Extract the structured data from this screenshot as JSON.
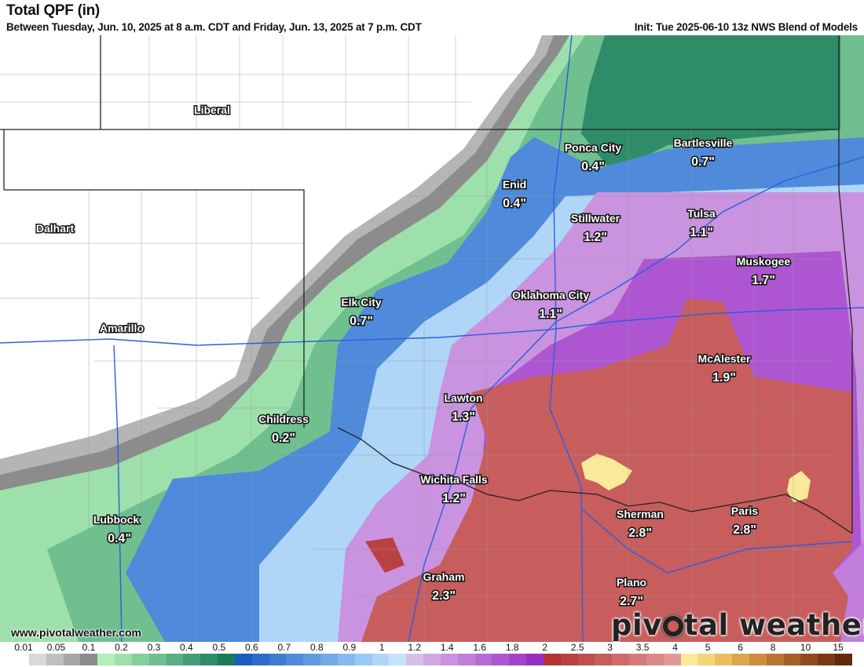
{
  "header": {
    "title": "Total QPF (in)",
    "subtitle": "Between Tuesday, Jun. 10, 2025 at 8 a.m. CDT and Friday, Jun. 13, 2025 at 7 p.m. CDT",
    "init": "Init: Tue 2025-06-10 13z NWS Blend of Models"
  },
  "cities": [
    {
      "name": "Liberal",
      "value": ""
    },
    {
      "name": "Dalhart",
      "value": ""
    },
    {
      "name": "Amarillo",
      "value": ""
    },
    {
      "name": "Ponca City",
      "value": "0.4\""
    },
    {
      "name": "Bartlesville",
      "value": "0.7\""
    },
    {
      "name": "Enid",
      "value": "0.4\""
    },
    {
      "name": "Stillwater",
      "value": "1.2\""
    },
    {
      "name": "Tulsa",
      "value": "1.1\""
    },
    {
      "name": "Muskogee",
      "value": "1.7\""
    },
    {
      "name": "Oklahoma City",
      "value": "1.1\""
    },
    {
      "name": "Elk City",
      "value": "0.7\""
    },
    {
      "name": "McAlester",
      "value": "1.9\""
    },
    {
      "name": "Lawton",
      "value": "1.3\""
    },
    {
      "name": "Childress",
      "value": "0.2\""
    },
    {
      "name": "Wichita Falls",
      "value": "1.2\""
    },
    {
      "name": "Sherman",
      "value": "2.8\""
    },
    {
      "name": "Paris",
      "value": "2.8\""
    },
    {
      "name": "Lubbock",
      "value": "0.4\""
    },
    {
      "name": "Graham",
      "value": "2.3\""
    },
    {
      "name": "Plano",
      "value": "2.7\""
    }
  ],
  "watermark": {
    "site": "www.pivotalweather.com",
    "logo_text": "pivotal weather",
    "logo_left": "piv",
    "logo_right": "tal weather"
  },
  "colorbar": {
    "labels": [
      "0.01",
      "0.05",
      "0.1",
      "0.2",
      "0.3",
      "0.4",
      "0.5",
      "0.6",
      "0.7",
      "0.8",
      "0.9",
      "1",
      "1.2",
      "1.4",
      "1.6",
      "1.8",
      "2",
      "2.5",
      "3",
      "3.5",
      "4",
      "5",
      "6",
      "8",
      "10",
      "15"
    ],
    "colors": [
      "#ffffff",
      "#d9d9d9",
      "#bfbfbf",
      "#a6a6a6",
      "#8c8c8c",
      "#b2f0b8",
      "#9de0ab",
      "#85cf9c",
      "#6fbf8f",
      "#5aae82",
      "#449d75",
      "#2f8c68",
      "#1b7b5b",
      "#1c5dbf",
      "#2d6cc9",
      "#3e7bd2",
      "#4f8adb",
      "#609ae3",
      "#72a9ea",
      "#85b9f0",
      "#9ac8f4",
      "#afd6f7",
      "#c5e4fa",
      "#d5bfe6",
      "#d0a8e3",
      "#c993df",
      "#c17edb",
      "#b86ad6",
      "#ae56d1",
      "#a343cb",
      "#9730c4",
      "#b23333",
      "#b94141",
      "#c04f4f",
      "#c75d5d",
      "#ce6b6b",
      "#d57a7a",
      "#dc8989",
      "#e39898",
      "#fbe99a",
      "#f2d67c",
      "#e9bf63",
      "#dba64f",
      "#cc8d3e",
      "#bb7530",
      "#a85f25",
      "#924b1b",
      "#7b3a13",
      "#64290c"
    ]
  },
  "map_colors": {
    "gray": "#a6a6a6",
    "light_green": "#9de0ab",
    "teal": "#2f8c68",
    "blue": "#4f8adb",
    "light_blue": "#afd6f7",
    "purple": "#c17edb",
    "red": "#c75d5d",
    "yellow": "#fbe99a",
    "border": "#111111",
    "highway": "#2a5fe0",
    "county": "#9a9a9a"
  }
}
